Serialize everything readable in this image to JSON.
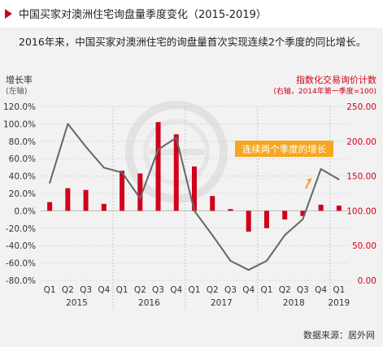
{
  "header": {
    "title": "中国买家对澳洲住宅询盘量季度变化（2015-2019）",
    "subtitle": "2016年来，中国买家对澳洲住宅的询盘量首次实现连续2个季度的同比增长。"
  },
  "axes": {
    "left_title": "增长率",
    "left_note": "(左轴)",
    "right_title": "指数化交易询价计数",
    "right_note": "(右轴，2014年第一季度=100)"
  },
  "annotation": "连续两个季度的增长",
  "source": "数据来源：居外网",
  "colors": {
    "bar": "#d0021b",
    "line": "#666666",
    "accent": "#d0021b",
    "callout_bg": "#f5a623"
  },
  "chart_data": {
    "type": "bar+line",
    "categories": [
      "Q1",
      "Q2",
      "Q3",
      "Q4",
      "Q1",
      "Q2",
      "Q3",
      "Q4",
      "Q1",
      "Q2",
      "Q3",
      "Q4",
      "Q1",
      "Q2",
      "Q3",
      "Q4",
      "Q1"
    ],
    "years": [
      {
        "label": "2015",
        "from": 0,
        "to": 3
      },
      {
        "label": "2016",
        "from": 4,
        "to": 7
      },
      {
        "label": "2017",
        "from": 8,
        "to": 11
      },
      {
        "label": "2018",
        "from": 12,
        "to": 15
      },
      {
        "label": "2019",
        "from": 16,
        "to": 16
      }
    ],
    "series": [
      {
        "type": "bar",
        "axis": "left",
        "values": [
          10,
          26,
          24,
          8,
          46,
          43,
          102,
          88,
          51,
          17,
          2,
          -24,
          -20,
          -10,
          -6,
          7,
          6
        ]
      },
      {
        "type": "line",
        "axis": "right",
        "values": [
          140,
          225,
          192,
          162,
          155,
          118,
          188,
          205,
          100,
          65,
          28,
          15,
          28,
          65,
          88,
          160,
          145
        ]
      }
    ],
    "left_axis": {
      "min": -80,
      "max": 120,
      "step": 20,
      "ticks": [
        "120.0%",
        "100.0%",
        "80.0%",
        "60.0%",
        "40.0%",
        "20.0%",
        "0.0%",
        "-20.0%",
        "-40.0%",
        "-60.0%",
        "-80.0%"
      ]
    },
    "right_axis": {
      "min": 0,
      "max": 250,
      "step": 50,
      "ticks": [
        "250.00",
        "200.00",
        "150.00",
        "100.00",
        "50.00",
        "0.00"
      ]
    },
    "grid": true
  }
}
